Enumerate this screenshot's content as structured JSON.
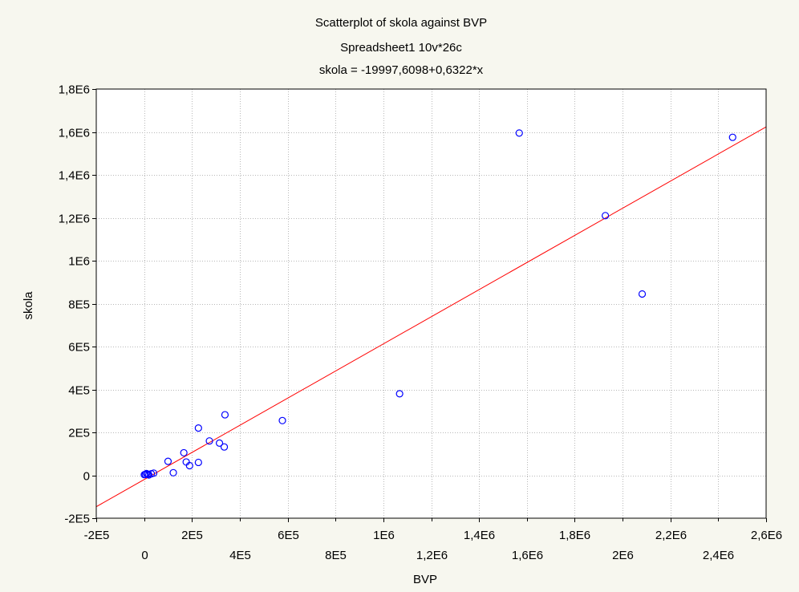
{
  "chart_data": {
    "type": "scatter",
    "title_lines": [
      "Scatterplot of skola against BVP",
      "Spreadsheet1 10v*26c",
      "skola = -19997,6098+0,6322*x"
    ],
    "xlabel": "BVP",
    "ylabel": "skola",
    "xlim": [
      -200000,
      2600000
    ],
    "ylim": [
      -200000,
      1800000
    ],
    "x_ticks_major": [
      -200000,
      200000,
      600000,
      1000000,
      1400000,
      1800000,
      2200000,
      2600000
    ],
    "x_tick_labels_major": [
      "-2E5",
      "2E5",
      "6E5",
      "1E6",
      "1,4E6",
      "1,8E6",
      "2,2E6",
      "2,6E6"
    ],
    "x_ticks_minor": [
      0,
      400000,
      800000,
      1200000,
      1600000,
      2000000,
      2400000
    ],
    "x_tick_labels_minor": [
      "0",
      "4E5",
      "8E5",
      "1,2E6",
      "1,6E6",
      "2E6",
      "2,4E6"
    ],
    "y_ticks": [
      -200000,
      0,
      200000,
      400000,
      600000,
      800000,
      1000000,
      1200000,
      1400000,
      1600000,
      1800000
    ],
    "y_tick_labels": [
      "-2E5",
      "0",
      "2E5",
      "4E5",
      "6E5",
      "8E5",
      "1E6",
      "1,2E6",
      "1,4E6",
      "1,6E6",
      "1,8E6"
    ],
    "grid": true,
    "regression": {
      "intercept": -19997.6098,
      "slope": 0.6322
    },
    "point_color": "#0000ff",
    "line_color": "#ff0000",
    "points": [
      {
        "x": 1000,
        "y": 3000
      },
      {
        "x": 5000,
        "y": 4000
      },
      {
        "x": 10000,
        "y": 8000
      },
      {
        "x": 15000,
        "y": 5000
      },
      {
        "x": 20000,
        "y": 2000
      },
      {
        "x": 30000,
        "y": 7000
      },
      {
        "x": 40000,
        "y": 10000
      },
      {
        "x": 100000,
        "y": 65000
      },
      {
        "x": 122000,
        "y": 12000
      },
      {
        "x": 166000,
        "y": 105000
      },
      {
        "x": 176000,
        "y": 62000
      },
      {
        "x": 190000,
        "y": 45000
      },
      {
        "x": 227000,
        "y": 60000
      },
      {
        "x": 227000,
        "y": 220000
      },
      {
        "x": 273000,
        "y": 160000
      },
      {
        "x": 315000,
        "y": 150000
      },
      {
        "x": 335000,
        "y": 132000
      },
      {
        "x": 338000,
        "y": 282000
      },
      {
        "x": 578000,
        "y": 255000
      },
      {
        "x": 1068000,
        "y": 380000
      },
      {
        "x": 1568000,
        "y": 1595000
      },
      {
        "x": 1928000,
        "y": 1210000
      },
      {
        "x": 2082000,
        "y": 845000
      },
      {
        "x": 2460000,
        "y": 1575000
      }
    ]
  }
}
